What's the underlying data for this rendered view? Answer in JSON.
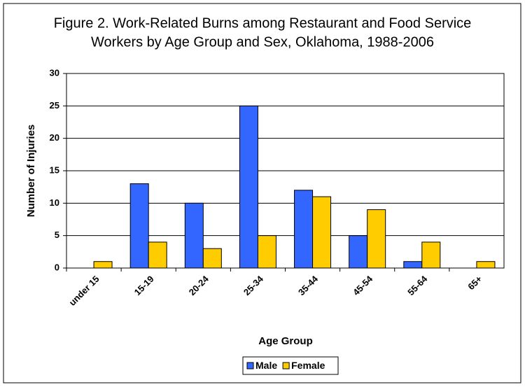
{
  "chart_data": {
    "type": "bar",
    "title": [
      "Figure 2. Work-Related Burns among Restaurant and Food Service",
      "Workers by Age Group and Sex, Oklahoma, 1988-2006"
    ],
    "x_label": "Age Group",
    "y_label": "Number of Injuries",
    "categories": [
      "under 15",
      "15-19",
      "20-24",
      "25-34",
      "35-44",
      "45-54",
      "55-64",
      "65+"
    ],
    "series": [
      {
        "name": "Male",
        "color": "#3366ff",
        "values": [
          0,
          13,
          10,
          25,
          12,
          5,
          1,
          0
        ]
      },
      {
        "name": "Female",
        "color": "#ffcc00",
        "values": [
          1,
          4,
          3,
          5,
          11,
          9,
          4,
          1
        ]
      }
    ],
    "ylim": [
      0,
      30
    ],
    "yticks": [
      0,
      5,
      10,
      15,
      20,
      25,
      30
    ],
    "grid": true,
    "legend": "bottom"
  }
}
